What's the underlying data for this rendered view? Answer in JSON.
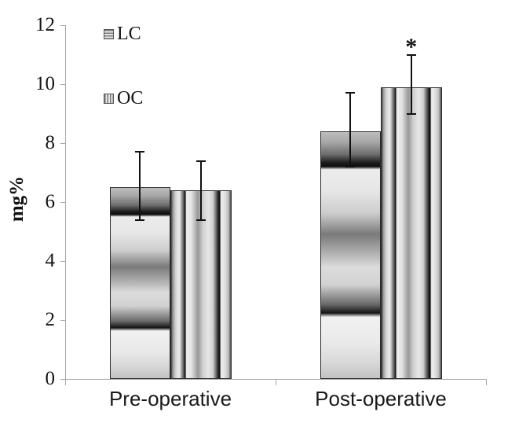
{
  "figure": {
    "background": "#ffffff",
    "axis_color": "#a8a8a8",
    "bar_border_color": "#2b2b2b",
    "error_bar_color": "#111111",
    "text_color": "#141414"
  },
  "chart_data": {
    "type": "bar",
    "title": "",
    "xlabel": "",
    "ylabel": "mg%",
    "categories": [
      "Pre-operative",
      "Post-operative"
    ],
    "series": [
      {
        "name": "LC",
        "pattern": "horizontal-stripes",
        "values": [
          6.5,
          8.4
        ],
        "error_upper": [
          1.2,
          1.3
        ],
        "error_lower": [
          1.1,
          1.2
        ]
      },
      {
        "name": "OC",
        "pattern": "vertical-stripes",
        "values": [
          6.4,
          9.9
        ],
        "error_upper": [
          1.0,
          1.1
        ],
        "error_lower": [
          1.0,
          0.9
        ]
      }
    ],
    "ylim": [
      0,
      12
    ],
    "yticks": [
      0,
      2,
      4,
      6,
      8,
      10,
      12
    ],
    "grid": false,
    "legend_position": "upper-left-inside",
    "annotations": [
      {
        "text": "*",
        "series": "OC",
        "category": "Post-operative"
      }
    ]
  }
}
